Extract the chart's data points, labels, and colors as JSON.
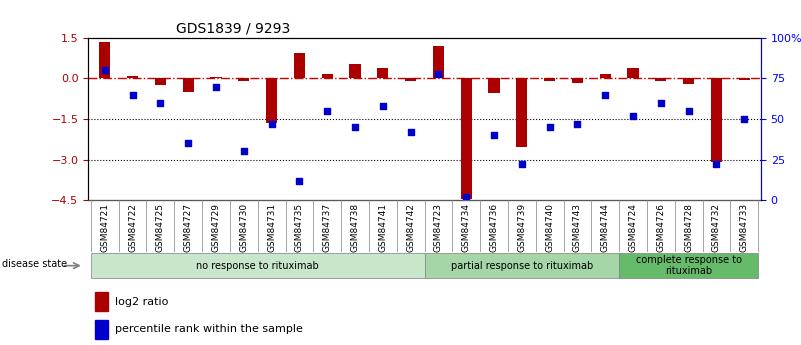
{
  "title": "GDS1839 / 9293",
  "samples": [
    "GSM84721",
    "GSM84722",
    "GSM84725",
    "GSM84727",
    "GSM84729",
    "GSM84730",
    "GSM84731",
    "GSM84735",
    "GSM84737",
    "GSM84738",
    "GSM84741",
    "GSM84742",
    "GSM84723",
    "GSM84734",
    "GSM84736",
    "GSM84739",
    "GSM84740",
    "GSM84743",
    "GSM84744",
    "GSM84724",
    "GSM84726",
    "GSM84728",
    "GSM84732",
    "GSM84733"
  ],
  "log2_ratio": [
    1.35,
    0.1,
    -0.25,
    -0.5,
    0.05,
    -0.1,
    -1.65,
    0.95,
    0.15,
    0.55,
    0.4,
    -0.1,
    1.2,
    -4.45,
    -0.55,
    -2.55,
    -0.1,
    -0.15,
    0.15,
    0.4,
    -0.1,
    -0.2,
    -3.1,
    -0.05
  ],
  "percentile_rank": [
    80,
    65,
    60,
    35,
    70,
    30,
    47,
    12,
    55,
    45,
    58,
    42,
    78,
    2,
    40,
    22,
    45,
    47,
    65,
    52,
    60,
    55,
    22,
    50
  ],
  "groups": [
    {
      "label": "no response to rituximab",
      "start": 0,
      "end": 12,
      "color": "#c8e6c9"
    },
    {
      "label": "partial response to rituximab",
      "start": 12,
      "end": 19,
      "color": "#a5d6a7"
    },
    {
      "label": "complete response to\nrituximab",
      "start": 19,
      "end": 24,
      "color": "#66bb6a"
    }
  ],
  "ylim_left": [
    -4.5,
    1.5
  ],
  "ylim_right": [
    0,
    100
  ],
  "yticks_left": [
    1.5,
    0,
    -1.5,
    -3,
    -4.5
  ],
  "yticks_right": [
    100,
    75,
    50,
    25,
    0
  ],
  "ytick_labels_right": [
    "100%",
    "75",
    "50",
    "25",
    "0"
  ],
  "bar_color": "#aa0000",
  "dot_color": "#0000cc",
  "zero_line_color": "#cc0000",
  "grid_color": "#000000",
  "disease_state_label": "disease state",
  "legend_log2": "log2 ratio",
  "legend_pct": "percentile rank within the sample"
}
